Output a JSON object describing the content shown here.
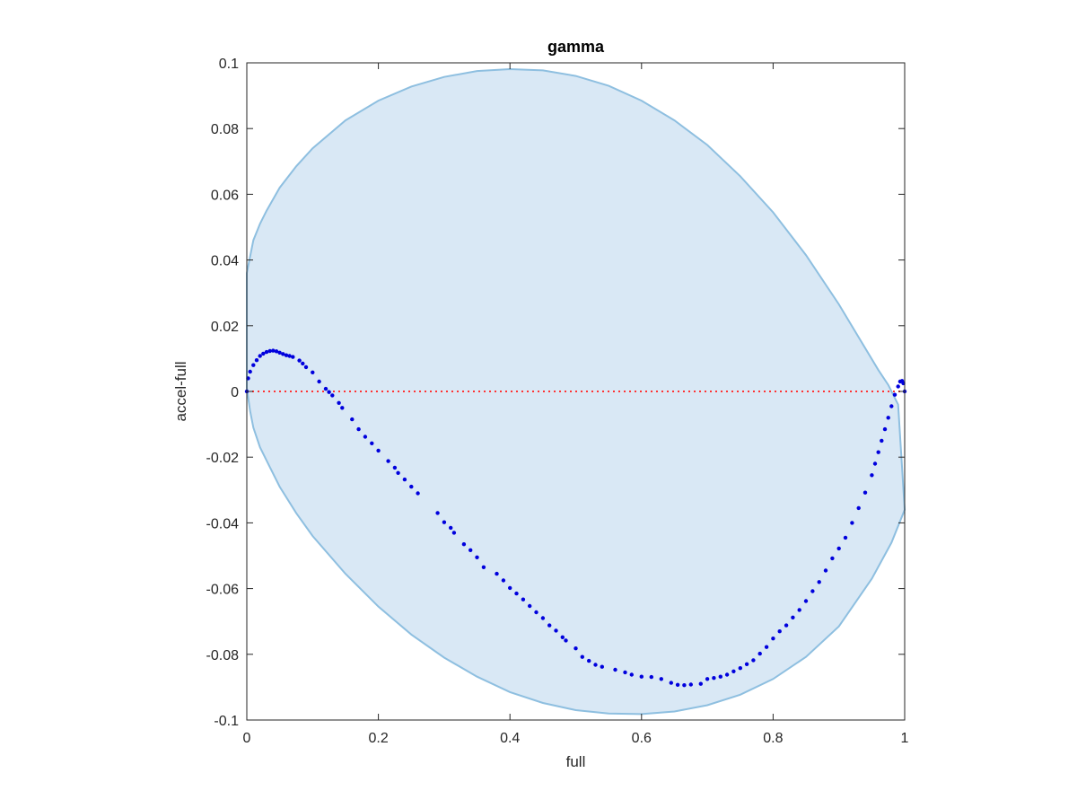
{
  "chart_data": {
    "type": "scatter",
    "title": "gamma",
    "xlabel": "full",
    "ylabel": "accel-full",
    "xlim": [
      0,
      1
    ],
    "ylim": [
      -0.1,
      0.1
    ],
    "x_ticks": [
      0,
      0.2,
      0.4,
      0.6,
      0.8,
      1
    ],
    "y_ticks": [
      -0.1,
      -0.08,
      -0.06,
      -0.04,
      -0.02,
      0,
      0.02,
      0.04,
      0.06,
      0.08,
      0.1
    ],
    "x_tick_labels": [
      "0",
      "0.2",
      "0.4",
      "0.6",
      "0.8",
      "1"
    ],
    "y_tick_labels": [
      "-0.1",
      "-0.08",
      "-0.06",
      "-0.04",
      "-0.02",
      "0",
      "0.02",
      "0.04",
      "0.06",
      "0.08",
      "0.1"
    ],
    "grid": false,
    "colors": {
      "region_fill": "#d9e8f5",
      "region_edge": "#8ebfe0",
      "points": "#0000dd",
      "zero_line": "#ff3333",
      "axes": "#262626"
    },
    "region": {
      "name": "",
      "upper": [
        [
          0,
          0.036
        ],
        [
          0.01,
          0.046
        ],
        [
          0.02,
          0.051
        ],
        [
          0.03,
          0.055
        ],
        [
          0.05,
          0.062
        ],
        [
          0.075,
          0.0685
        ],
        [
          0.1,
          0.074
        ],
        [
          0.15,
          0.0825
        ],
        [
          0.2,
          0.0885
        ],
        [
          0.25,
          0.0928
        ],
        [
          0.3,
          0.0957
        ],
        [
          0.35,
          0.0975
        ],
        [
          0.4,
          0.0981
        ],
        [
          0.45,
          0.0977
        ],
        [
          0.5,
          0.096
        ],
        [
          0.55,
          0.093
        ],
        [
          0.6,
          0.0885
        ],
        [
          0.65,
          0.0825
        ],
        [
          0.7,
          0.075
        ],
        [
          0.75,
          0.0655
        ],
        [
          0.8,
          0.0545
        ],
        [
          0.85,
          0.0415
        ],
        [
          0.9,
          0.0265
        ],
        [
          0.93,
          0.0165
        ],
        [
          0.96,
          0.0065
        ],
        [
          0.975,
          0.002
        ],
        [
          0.99,
          -0.004
        ],
        [
          1.0,
          -0.036
        ]
      ],
      "lower": [
        [
          0,
          0.001
        ],
        [
          0.005,
          -0.006
        ],
        [
          0.01,
          -0.011
        ],
        [
          0.02,
          -0.017
        ],
        [
          0.03,
          -0.021
        ],
        [
          0.05,
          -0.029
        ],
        [
          0.075,
          -0.037
        ],
        [
          0.1,
          -0.044
        ],
        [
          0.15,
          -0.0555
        ],
        [
          0.2,
          -0.0655
        ],
        [
          0.25,
          -0.074
        ],
        [
          0.3,
          -0.081
        ],
        [
          0.35,
          -0.0868
        ],
        [
          0.4,
          -0.0915
        ],
        [
          0.45,
          -0.0948
        ],
        [
          0.5,
          -0.097
        ],
        [
          0.55,
          -0.098
        ],
        [
          0.6,
          -0.0982
        ],
        [
          0.65,
          -0.0974
        ],
        [
          0.7,
          -0.0955
        ],
        [
          0.75,
          -0.0923
        ],
        [
          0.8,
          -0.0875
        ],
        [
          0.85,
          -0.0808
        ],
        [
          0.9,
          -0.0715
        ],
        [
          0.95,
          -0.057
        ],
        [
          0.98,
          -0.046
        ],
        [
          1.0,
          -0.036
        ]
      ]
    },
    "reference_line": {
      "y": 0,
      "style": "dotted"
    },
    "series": [
      {
        "name": "",
        "points": [
          [
            0.0,
            0.0
          ],
          [
            0.002,
            0.004
          ],
          [
            0.005,
            0.006
          ],
          [
            0.01,
            0.008
          ],
          [
            0.015,
            0.0095
          ],
          [
            0.02,
            0.0108
          ],
          [
            0.025,
            0.0115
          ],
          [
            0.03,
            0.012
          ],
          [
            0.035,
            0.0123
          ],
          [
            0.04,
            0.0124
          ],
          [
            0.045,
            0.0122
          ],
          [
            0.05,
            0.0118
          ],
          [
            0.055,
            0.0114
          ],
          [
            0.06,
            0.011
          ],
          [
            0.065,
            0.0108
          ],
          [
            0.07,
            0.0105
          ],
          [
            0.08,
            0.0094
          ],
          [
            0.085,
            0.0085
          ],
          [
            0.09,
            0.0074
          ],
          [
            0.1,
            0.0058
          ],
          [
            0.11,
            0.003
          ],
          [
            0.12,
            0.0008
          ],
          [
            0.125,
            -0.0002
          ],
          [
            0.13,
            -0.0012
          ],
          [
            0.14,
            -0.0035
          ],
          [
            0.145,
            -0.005
          ],
          [
            0.16,
            -0.0085
          ],
          [
            0.17,
            -0.0115
          ],
          [
            0.18,
            -0.0138
          ],
          [
            0.19,
            -0.0158
          ],
          [
            0.2,
            -0.018
          ],
          [
            0.215,
            -0.0212
          ],
          [
            0.225,
            -0.0232
          ],
          [
            0.23,
            -0.0248
          ],
          [
            0.24,
            -0.0268
          ],
          [
            0.25,
            -0.029
          ],
          [
            0.26,
            -0.031
          ],
          [
            0.29,
            -0.037
          ],
          [
            0.3,
            -0.0398
          ],
          [
            0.31,
            -0.0415
          ],
          [
            0.315,
            -0.043
          ],
          [
            0.33,
            -0.0465
          ],
          [
            0.34,
            -0.0483
          ],
          [
            0.35,
            -0.0505
          ],
          [
            0.36,
            -0.0535
          ],
          [
            0.38,
            -0.0555
          ],
          [
            0.39,
            -0.0575
          ],
          [
            0.4,
            -0.0598
          ],
          [
            0.41,
            -0.0615
          ],
          [
            0.42,
            -0.0633
          ],
          [
            0.43,
            -0.0653
          ],
          [
            0.44,
            -0.0672
          ],
          [
            0.45,
            -0.069
          ],
          [
            0.46,
            -0.0712
          ],
          [
            0.47,
            -0.0728
          ],
          [
            0.48,
            -0.0748
          ],
          [
            0.485,
            -0.0758
          ],
          [
            0.5,
            -0.0782
          ],
          [
            0.51,
            -0.0808
          ],
          [
            0.52,
            -0.082
          ],
          [
            0.53,
            -0.0832
          ],
          [
            0.54,
            -0.0838
          ],
          [
            0.56,
            -0.0847
          ],
          [
            0.575,
            -0.0855
          ],
          [
            0.585,
            -0.0862
          ],
          [
            0.6,
            -0.0868
          ],
          [
            0.615,
            -0.0869
          ],
          [
            0.63,
            -0.0875
          ],
          [
            0.645,
            -0.0887
          ],
          [
            0.655,
            -0.0893
          ],
          [
            0.665,
            -0.0894
          ],
          [
            0.675,
            -0.0892
          ],
          [
            0.69,
            -0.089
          ],
          [
            0.7,
            -0.0875
          ],
          [
            0.71,
            -0.0872
          ],
          [
            0.72,
            -0.0868
          ],
          [
            0.73,
            -0.0862
          ],
          [
            0.74,
            -0.0852
          ],
          [
            0.75,
            -0.0842
          ],
          [
            0.76,
            -0.083
          ],
          [
            0.77,
            -0.0818
          ],
          [
            0.78,
            -0.0798
          ],
          [
            0.79,
            -0.0778
          ],
          [
            0.8,
            -0.0752
          ],
          [
            0.81,
            -0.073
          ],
          [
            0.82,
            -0.0712
          ],
          [
            0.83,
            -0.0688
          ],
          [
            0.84,
            -0.0665
          ],
          [
            0.85,
            -0.0638
          ],
          [
            0.86,
            -0.0608
          ],
          [
            0.87,
            -0.058
          ],
          [
            0.88,
            -0.0545
          ],
          [
            0.89,
            -0.0508
          ],
          [
            0.9,
            -0.0478
          ],
          [
            0.91,
            -0.0445
          ],
          [
            0.92,
            -0.04
          ],
          [
            0.93,
            -0.0355
          ],
          [
            0.94,
            -0.0308
          ],
          [
            0.95,
            -0.0255
          ],
          [
            0.955,
            -0.022
          ],
          [
            0.96,
            -0.0185
          ],
          [
            0.965,
            -0.015
          ],
          [
            0.97,
            -0.0115
          ],
          [
            0.975,
            -0.008
          ],
          [
            0.98,
            -0.0045
          ],
          [
            0.985,
            -0.001
          ],
          [
            0.99,
            0.0015
          ],
          [
            0.993,
            0.003
          ],
          [
            0.996,
            0.0032
          ],
          [
            0.998,
            0.0025
          ],
          [
            1.0,
            0.0
          ]
        ]
      }
    ]
  }
}
